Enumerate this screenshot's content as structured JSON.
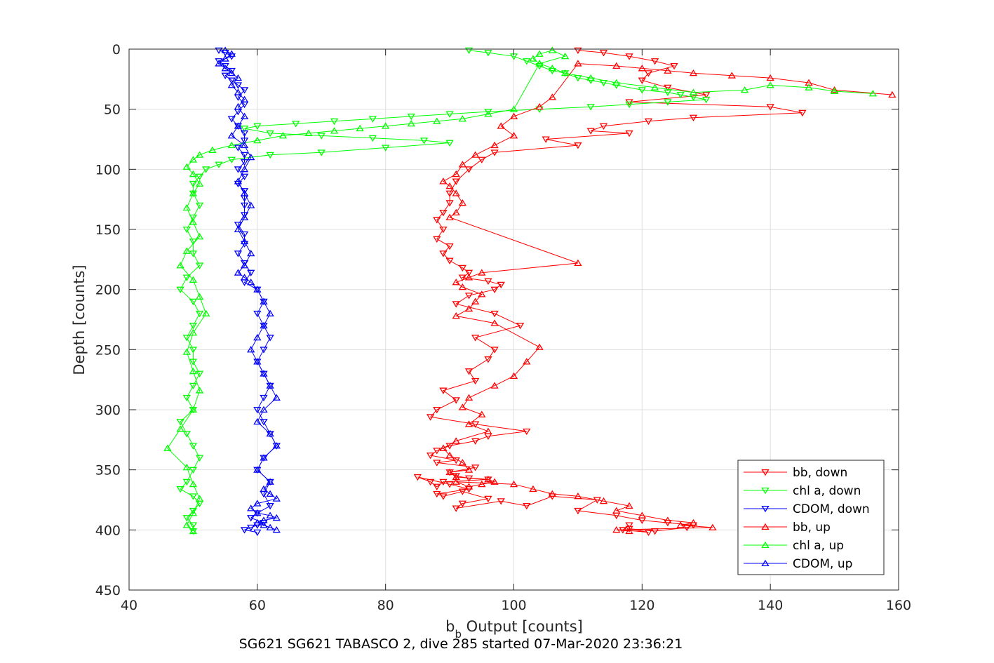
{
  "chart_data": {
    "type": "scatter",
    "xlabel_main": "b",
    "xlabel_sub": "b",
    "xlabel_rest": " Output [counts]",
    "ylabel": "Depth [counts]",
    "caption": "SG621 SG621 TABASCO 2, dive 285 started 07-Mar-2020 23:36:21",
    "xlim": [
      40,
      160
    ],
    "ylim": [
      0,
      450
    ],
    "y_reversed": true,
    "grid": true,
    "xticks": [
      40,
      60,
      80,
      100,
      120,
      140,
      160
    ],
    "yticks": [
      0,
      50,
      100,
      150,
      200,
      250,
      300,
      350,
      400,
      450
    ],
    "legend_position": "bottom-right",
    "series": [
      {
        "name": "bb, down",
        "color": "#ff0000",
        "marker": "triangle-down",
        "connected": true,
        "x": [
          110,
          114,
          118,
          122,
          125,
          121,
          120,
          124,
          130,
          118,
          140,
          145,
          128,
          121,
          114,
          112,
          118,
          105,
          110,
          97,
          95,
          93,
          91,
          90,
          90,
          89,
          88,
          89,
          88,
          90,
          89,
          90,
          92,
          93,
          92,
          96,
          98,
          97,
          93,
          91,
          97,
          101,
          94,
          97,
          96,
          93,
          94,
          89,
          91,
          88,
          87,
          94,
          102,
          96,
          94,
          90,
          88,
          87,
          91,
          88,
          94,
          90,
          91,
          93,
          96,
          89,
          88,
          87,
          85,
          90,
          93,
          88,
          89,
          92,
          96,
          92,
          91,
          98,
          102,
          106,
          113,
          110,
          116,
          120,
          124,
          128,
          127,
          122,
          118,
          121,
          117,
          118
        ],
        "y": [
          1,
          3,
          6,
          10,
          14,
          20,
          26,
          32,
          38,
          44,
          48,
          53,
          57,
          60,
          64,
          68,
          70,
          75,
          80,
          86,
          92,
          100,
          110,
          120,
          128,
          136,
          142,
          150,
          158,
          164,
          170,
          176,
          182,
          186,
          190,
          193,
          196,
          200,
          205,
          212,
          220,
          230,
          240,
          250,
          258,
          268,
          276,
          284,
          292,
          300,
          306,
          312,
          318,
          322,
          326,
          330,
          334,
          338,
          342,
          344,
          348,
          352,
          355,
          357,
          358,
          360,
          364,
          360,
          356,
          362,
          366,
          370,
          372,
          368,
          374,
          378,
          382,
          376,
          380,
          372,
          375,
          384,
          388,
          392,
          394,
          396,
          398,
          401,
          399,
          402,
          400,
          396
        ]
      },
      {
        "name": "chl a, down",
        "color": "#00ff00",
        "marker": "triangle-down",
        "connected": true,
        "x": [
          93,
          96,
          100,
          102,
          104,
          106,
          108,
          110,
          112,
          114,
          116,
          120,
          124,
          126,
          128,
          130,
          124,
          118,
          112,
          104,
          96,
          90,
          84,
          78,
          72,
          66,
          60,
          58,
          62,
          70,
          78,
          86,
          90,
          80,
          70,
          62,
          56,
          54,
          52,
          51,
          50,
          50,
          51,
          50,
          49,
          50,
          50,
          51,
          49,
          48,
          50,
          51,
          50,
          49,
          50,
          50,
          51,
          50,
          49,
          50,
          48,
          49,
          50,
          51,
          50,
          49,
          48,
          50,
          51,
          50,
          49,
          50,
          50
        ],
        "y": [
          1,
          3,
          6,
          10,
          14,
          18,
          20,
          24,
          26,
          28,
          30,
          34,
          36,
          38,
          40,
          42,
          44,
          46,
          48,
          50,
          52,
          54,
          56,
          58,
          60,
          62,
          64,
          66,
          70,
          72,
          74,
          76,
          78,
          82,
          86,
          88,
          92,
          96,
          100,
          106,
          112,
          120,
          130,
          140,
          150,
          160,
          170,
          180,
          190,
          200,
          210,
          220,
          230,
          240,
          250,
          260,
          270,
          280,
          290,
          300,
          310,
          320,
          330,
          340,
          350,
          360,
          366,
          372,
          378,
          384,
          390,
          396,
          401
        ]
      },
      {
        "name": "CDOM, down",
        "color": "#0000ff",
        "marker": "triangle-down",
        "connected": true,
        "x": [
          54,
          55,
          56,
          54,
          55,
          56,
          55,
          56,
          57,
          58,
          57,
          58,
          57,
          56,
          57,
          58,
          58,
          57,
          58,
          58,
          57,
          58,
          57,
          58,
          58,
          58,
          58,
          57,
          58,
          58,
          57,
          58,
          59,
          58,
          60,
          61,
          60,
          61,
          62,
          61,
          60,
          61,
          62,
          61,
          60,
          61,
          62,
          63,
          61,
          60,
          62,
          61,
          62,
          60,
          59,
          61,
          60,
          59,
          58,
          60
        ],
        "y": [
          1,
          3,
          6,
          10,
          14,
          18,
          22,
          26,
          30,
          34,
          40,
          46,
          52,
          58,
          64,
          70,
          76,
          82,
          88,
          94,
          100,
          106,
          112,
          118,
          124,
          130,
          138,
          146,
          154,
          162,
          170,
          178,
          186,
          194,
          200,
          210,
          220,
          230,
          240,
          250,
          260,
          270,
          280,
          290,
          300,
          310,
          320,
          330,
          340,
          350,
          360,
          370,
          380,
          386,
          390,
          394,
          396,
          398,
          400,
          402
        ]
      },
      {
        "name": "bb, up",
        "color": "#ff0000",
        "marker": "triangle-up",
        "connected": true,
        "x": [
          159,
          150,
          146,
          140,
          134,
          128,
          124,
          120,
          116,
          110,
          106,
          104,
          100,
          98,
          100,
          97,
          94,
          92,
          91,
          89,
          90,
          91,
          92,
          91,
          90,
          110,
          95,
          93,
          91,
          92,
          95,
          94,
          93,
          91,
          97,
          104,
          102,
          100,
          97,
          93,
          92,
          95,
          93,
          96,
          91,
          89,
          90,
          92,
          93,
          90,
          91,
          96,
          97,
          95,
          93,
          91,
          100,
          103,
          106,
          110,
          114,
          118,
          116,
          120,
          124,
          128,
          126,
          131,
          116,
          118
        ],
        "y": [
          38,
          34,
          28,
          24,
          22,
          20,
          18,
          16,
          14,
          12,
          40,
          48,
          56,
          64,
          72,
          80,
          88,
          96,
          104,
          110,
          114,
          120,
          128,
          136,
          140,
          178,
          186,
          190,
          194,
          198,
          204,
          210,
          216,
          222,
          228,
          248,
          260,
          272,
          280,
          290,
          298,
          304,
          312,
          318,
          326,
          332,
          338,
          344,
          350,
          352,
          356,
          358,
          360,
          362,
          364,
          360,
          362,
          366,
          370,
          372,
          376,
          380,
          384,
          388,
          392,
          394,
          396,
          398,
          400,
          401
        ]
      },
      {
        "name": "chl a, up",
        "color": "#00ff00",
        "marker": "triangle-up",
        "connected": true,
        "x": [
          156,
          150,
          146,
          140,
          136,
          128,
          122,
          116,
          112,
          108,
          106,
          104,
          103,
          104,
          106,
          108,
          104,
          100,
          96,
          92,
          88,
          84,
          80,
          76,
          72,
          68,
          64,
          60,
          56,
          53,
          51,
          50,
          49,
          50,
          51,
          50,
          49,
          50,
          51,
          49,
          48,
          50,
          51,
          52,
          50,
          49,
          50,
          51,
          50,
          48,
          46,
          49,
          50,
          51,
          50,
          49,
          50
        ],
        "y": [
          37,
          35,
          32,
          30,
          34,
          36,
          32,
          28,
          24,
          20,
          16,
          12,
          8,
          4,
          1,
          6,
          12,
          50,
          54,
          58,
          60,
          62,
          64,
          66,
          68,
          70,
          72,
          76,
          80,
          84,
          88,
          92,
          98,
          104,
          112,
          120,
          132,
          144,
          156,
          168,
          180,
          192,
          206,
          220,
          236,
          252,
          268,
          284,
          300,
          316,
          332,
          348,
          362,
          374,
          386,
          396,
          401
        ]
      },
      {
        "name": "CDOM, up",
        "color": "#0000ff",
        "marker": "triangle-up",
        "connected": true,
        "x": [
          55,
          56,
          55,
          54,
          55,
          56,
          57,
          56,
          57,
          58,
          57,
          58,
          57,
          56,
          58,
          59,
          58,
          57,
          58,
          59,
          58,
          57,
          58,
          59,
          58,
          57,
          58,
          59,
          60,
          61,
          62,
          61,
          60,
          59,
          60,
          61,
          62,
          63,
          61,
          60,
          62,
          63,
          61,
          60,
          62,
          61,
          62,
          63,
          60,
          59,
          60,
          62,
          63,
          61,
          60,
          61,
          62,
          63
        ],
        "y": [
          1,
          4,
          8,
          12,
          16,
          20,
          24,
          30,
          36,
          42,
          48,
          56,
          64,
          72,
          80,
          90,
          100,
          110,
          120,
          130,
          140,
          150,
          160,
          170,
          180,
          186,
          190,
          194,
          200,
          210,
          220,
          230,
          240,
          250,
          260,
          270,
          280,
          290,
          300,
          310,
          320,
          330,
          340,
          350,
          360,
          366,
          370,
          374,
          378,
          382,
          386,
          388,
          390,
          392,
          394,
          396,
          398,
          400
        ]
      }
    ]
  }
}
